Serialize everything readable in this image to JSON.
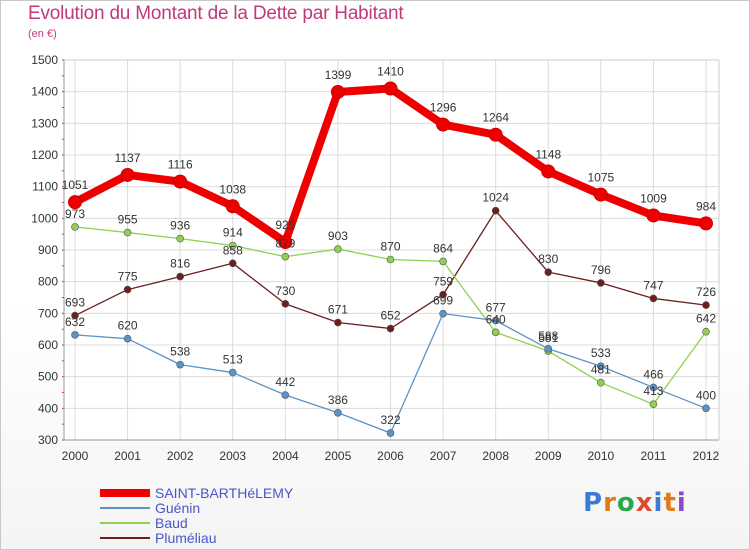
{
  "header": {
    "title": "Evolution du Montant de la Dette par Habitant",
    "subtitle": "(en €)"
  },
  "logo": {
    "text": "Proxiti",
    "colors": [
      "#3a7bd5",
      "#e07b1a",
      "#2aa84a",
      "#e04a2a",
      "#3a7bd5",
      "#e07b1a",
      "#8a4ac8"
    ]
  },
  "chart_data": {
    "type": "line",
    "categories": [
      "2000",
      "2001",
      "2002",
      "2003",
      "2004",
      "2005",
      "2006",
      "2007",
      "2008",
      "2009",
      "2010",
      "2011",
      "2012"
    ],
    "ylim": [
      300,
      1500
    ],
    "yticks": [
      300,
      400,
      500,
      600,
      700,
      800,
      900,
      1000,
      1100,
      1200,
      1300,
      1400,
      1500
    ],
    "grid": true,
    "legend": "bottom-left",
    "series": [
      {
        "name": "SAINT-BARTHéLEMY",
        "color": "#ee0000",
        "values": [
          1051,
          1137,
          1116,
          1038,
          925,
          1399,
          1410,
          1296,
          1264,
          1148,
          1075,
          1009,
          984
        ]
      },
      {
        "name": "Guénin",
        "color": "#5b93c9",
        "values": [
          632,
          620,
          538,
          513,
          442,
          386,
          322,
          699,
          677,
          588,
          533,
          466,
          400
        ]
      },
      {
        "name": "Baud",
        "color": "#8fd14f",
        "values": [
          973,
          955,
          936,
          914,
          879,
          903,
          870,
          864,
          640,
          581,
          481,
          413,
          642
        ]
      },
      {
        "name": "Pluméliau",
        "color": "#6b1f1f",
        "values": [
          693,
          775,
          816,
          858,
          730,
          671,
          652,
          759,
          1024,
          830,
          796,
          747,
          726
        ]
      }
    ]
  }
}
